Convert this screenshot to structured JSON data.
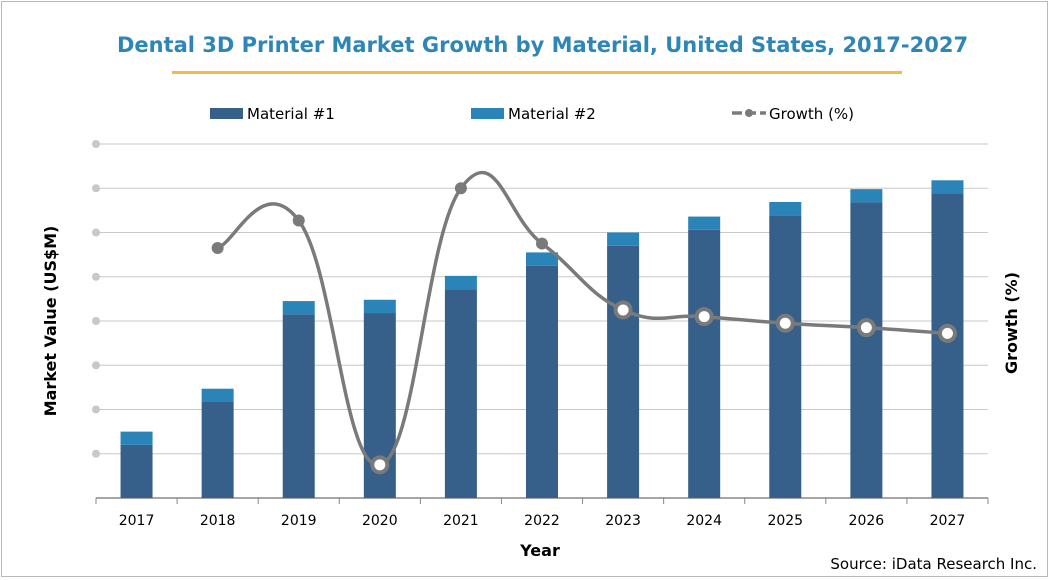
{
  "chart_data": {
    "type": "bar",
    "title": "Dental 3D Printer Market Growth by Material, United States, 2017-2027",
    "xlabel": "Year",
    "ylabel_left": "Market Value (US$M)",
    "ylabel_right": "Growth (%)",
    "source": "Source: iData Research Inc.",
    "categories": [
      "2017",
      "2018",
      "2019",
      "2020",
      "2021",
      "2022",
      "2023",
      "2024",
      "2025",
      "2026",
      "2027"
    ],
    "stacked": true,
    "grid": true,
    "legend_position": "top",
    "ylim": [
      0,
      8
    ],
    "series": [
      {
        "name": "Material #1",
        "color": "#36608a",
        "values": [
          1.2,
          2.17,
          4.15,
          4.18,
          4.72,
          5.25,
          5.7,
          6.06,
          6.39,
          6.68,
          6.88
        ]
      },
      {
        "name": "Material #2",
        "color": "#2a84b8",
        "values": [
          0.3,
          0.3,
          0.3,
          0.3,
          0.3,
          0.3,
          0.3,
          0.3,
          0.3,
          0.3,
          0.3
        ]
      }
    ],
    "line_series": {
      "name": "Growth (%)",
      "color": "#7a7a7a",
      "ylim": [
        0,
        8
      ],
      "values": [
        null,
        5.65,
        6.27,
        0.75,
        7.0,
        5.75,
        4.25,
        4.1,
        3.95,
        3.85,
        3.72
      ],
      "hollow_markers_from_index": 6
    }
  }
}
